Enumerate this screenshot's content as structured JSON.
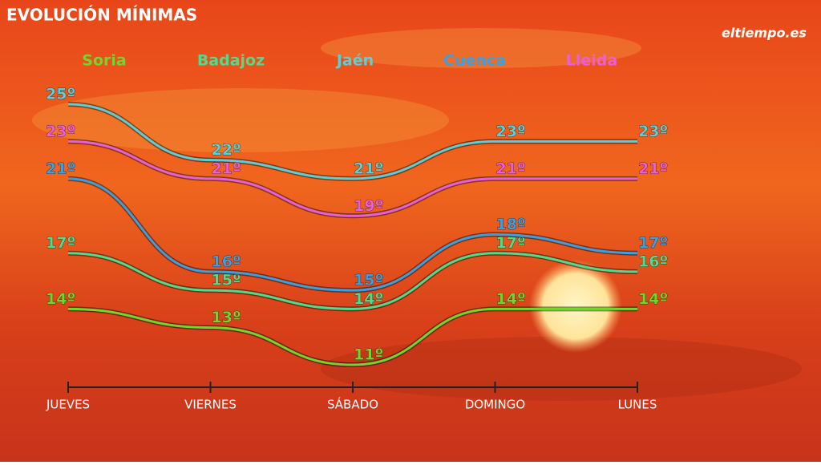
{
  "title": "EVOLUCIÓN MÍNIMAS",
  "logo": "eltiempo.es",
  "chart_data": {
    "type": "line",
    "categories": [
      "JUEVES",
      "VIERNES",
      "SÁBADO",
      "DOMINGO",
      "LUNES"
    ],
    "series": [
      {
        "name": "Soria",
        "color": "#72d62c",
        "values": [
          14,
          13,
          11,
          14,
          14
        ],
        "value_labels": [
          "14º",
          "13º",
          "11º",
          "14º",
          "14º"
        ]
      },
      {
        "name": "Badajoz",
        "color": "#4fdc8c",
        "values": [
          17,
          15,
          14,
          17,
          16
        ],
        "value_labels": [
          "17º",
          "15º",
          "14º",
          "17º",
          "16º"
        ]
      },
      {
        "name": "Jaén",
        "color": "#5ccfd6",
        "values": [
          25,
          22,
          21,
          23,
          23
        ],
        "value_labels": [
          "25º",
          "22º",
          "21º",
          "23º",
          "23º"
        ]
      },
      {
        "name": "Cuenca",
        "color": "#3b9fe0",
        "values": [
          21,
          16,
          15,
          18,
          17
        ],
        "value_labels": [
          "21º",
          "16º",
          "15º",
          "18º",
          "17º"
        ]
      },
      {
        "name": "Lleida",
        "color": "#ea5fd9",
        "values": [
          23,
          21,
          19,
          21,
          21
        ],
        "value_labels": [
          "23º",
          "21º",
          "19º",
          "21º",
          "21º"
        ]
      }
    ]
  }
}
